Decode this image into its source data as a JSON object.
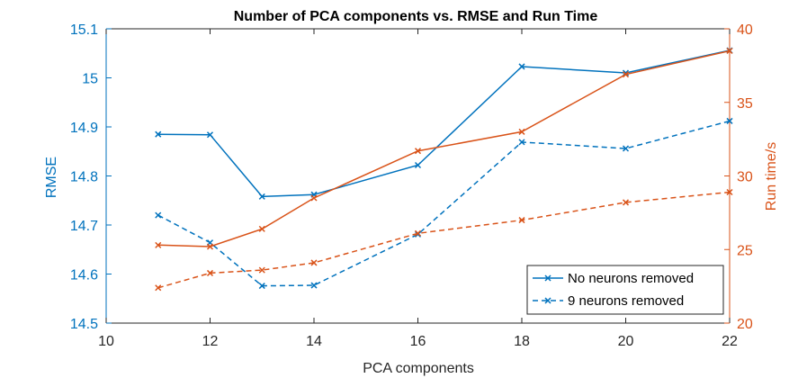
{
  "chart_data": {
    "type": "line",
    "title": "Number of PCA components vs. RMSE and Run Time",
    "xlabel": "PCA components",
    "ylabel_left": "RMSE",
    "ylabel_right": "Run time/s",
    "xlim": [
      10,
      22
    ],
    "xticks": [
      10,
      12,
      14,
      16,
      18,
      20,
      22
    ],
    "ylim_left": [
      14.5,
      15.1
    ],
    "yticks_left": [
      14.5,
      14.6,
      14.7,
      14.8,
      14.9,
      15,
      15.1
    ],
    "ylim_right": [
      20,
      40
    ],
    "yticks_right": [
      20,
      25,
      30,
      35,
      40
    ],
    "grid": false,
    "legend_position": "bottom-right",
    "x": [
      11,
      12,
      13,
      14,
      16,
      18,
      20,
      22
    ],
    "series": [
      {
        "name": "No neurons removed",
        "axis": "left",
        "color": "#0072BD",
        "line_style": "solid",
        "marker": "x",
        "values": [
          14.885,
          14.884,
          14.758,
          14.762,
          14.822,
          15.023,
          15.01,
          15.056
        ]
      },
      {
        "name": "9 neurons removed",
        "axis": "left",
        "color": "#0072BD",
        "line_style": "dashed",
        "marker": "x",
        "values": [
          14.72,
          14.664,
          14.576,
          14.577,
          14.681,
          14.869,
          14.856,
          14.912
        ]
      },
      {
        "axis": "right",
        "color": "#D95319",
        "line_style": "solid",
        "marker": "x",
        "values": [
          25.3,
          25.2,
          26.4,
          28.5,
          31.7,
          33.0,
          36.9,
          38.5
        ]
      },
      {
        "axis": "right",
        "color": "#D95319",
        "line_style": "dashed",
        "marker": "x",
        "values": [
          22.4,
          23.4,
          23.6,
          24.1,
          26.1,
          27.0,
          28.2,
          28.9
        ]
      }
    ]
  }
}
